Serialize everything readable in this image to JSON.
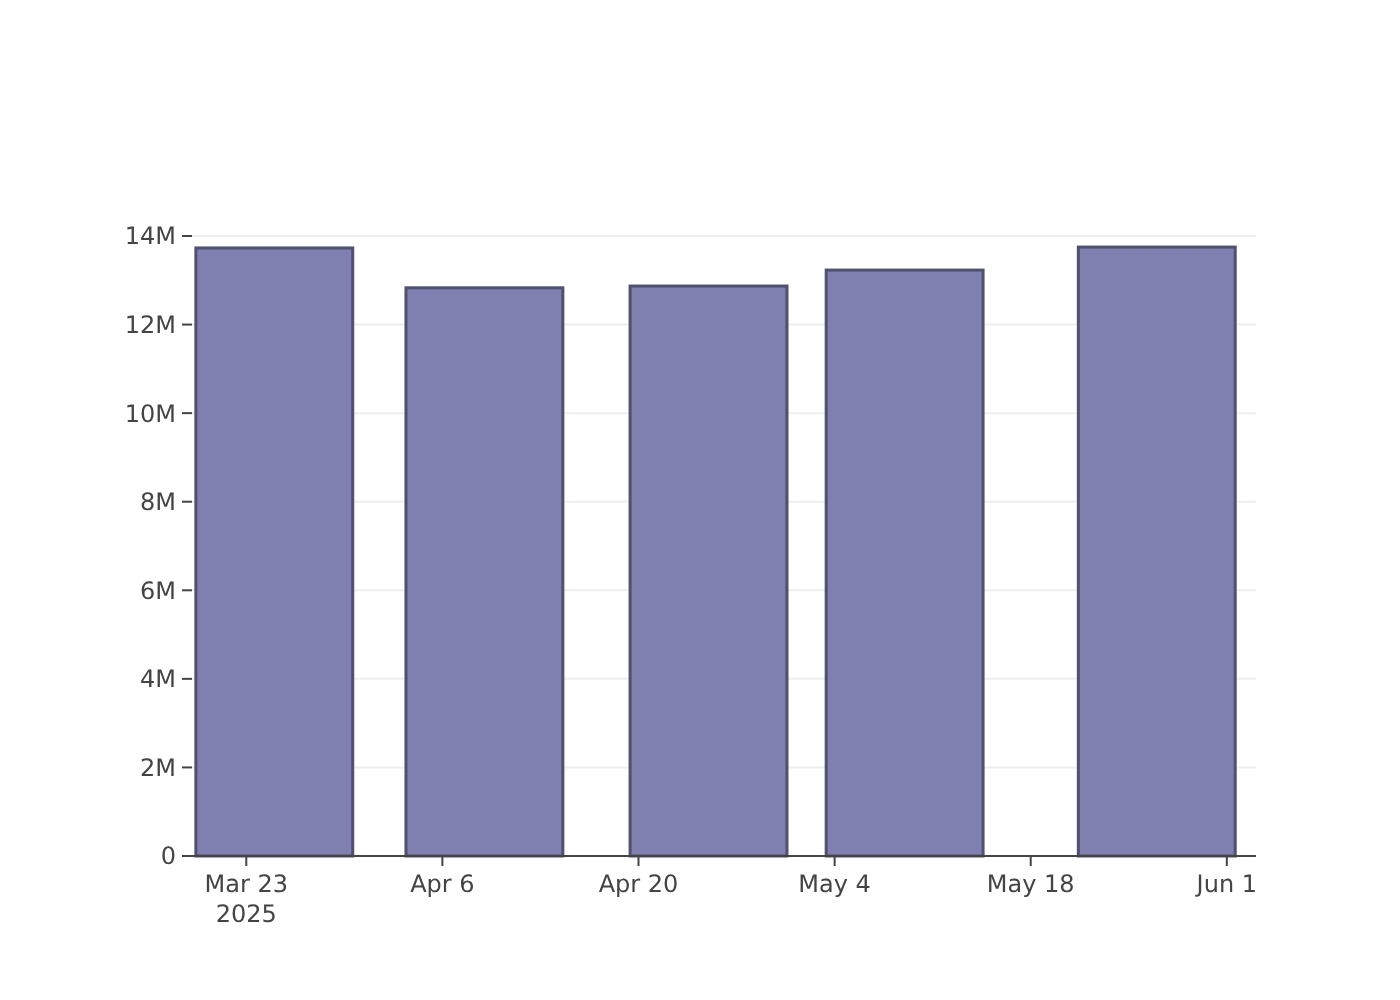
{
  "chart_data": {
    "type": "bar",
    "x": [
      "2025-03-25",
      "2025-04-09",
      "2025-04-25",
      "2025-05-09",
      "2025-05-27"
    ],
    "values": [
      13730000,
      12830000,
      12870000,
      13230000,
      13750000
    ],
    "color": "#7f7fb0",
    "xlim": [
      "2025-03-19T03:00",
      "2025-06-03T02:00"
    ],
    "xticks": [
      {
        "value": "2025-03-23",
        "label": "Mar 23\n2025"
      },
      {
        "value": "2025-04-06",
        "label": "Apr 6"
      },
      {
        "value": "2025-04-20",
        "label": "Apr 20"
      },
      {
        "value": "2025-05-04",
        "label": "May 4"
      },
      {
        "value": "2025-05-18",
        "label": "May 18"
      },
      {
        "value": "2025-06-01",
        "label": "Jun 1"
      }
    ],
    "ylim": [
      0,
      14000000
    ],
    "yticks": [
      0,
      {
        "value": 2000000,
        "label": "2M"
      },
      {
        "value": 4000000,
        "label": "4M"
      },
      {
        "value": 6000000,
        "label": "6M"
      },
      {
        "value": 8000000,
        "label": "8M"
      },
      {
        "value": 10000000,
        "label": "10M"
      },
      {
        "value": 12000000,
        "label": "12M"
      },
      {
        "value": 14000000,
        "label": "14M"
      }
    ],
    "grid": "y"
  }
}
